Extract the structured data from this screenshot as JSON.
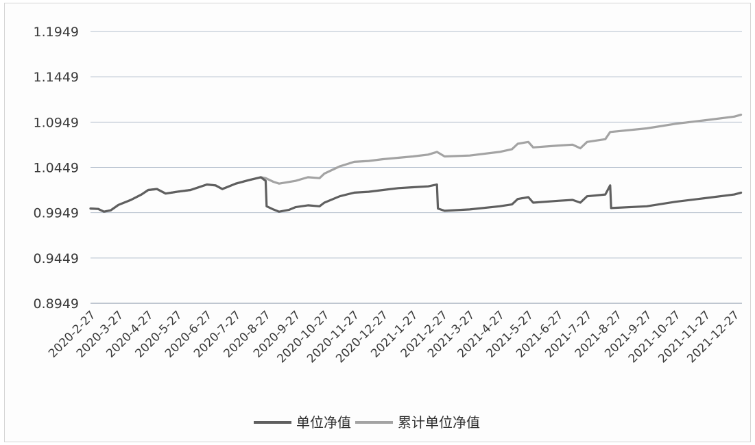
{
  "chart_data": {
    "type": "line",
    "title": "",
    "xlabel": "",
    "ylabel": "",
    "ylim": [
      0.8949,
      1.1949
    ],
    "yticks": [
      "1.1949",
      "1.1449",
      "1.0949",
      "1.0449",
      "0.9949",
      "0.9449",
      "0.8949"
    ],
    "x_labels": [
      "2020-2-27",
      "2020-3-27",
      "2020-4-27",
      "2020-5-27",
      "2020-6-27",
      "2020-7-27",
      "2020-8-27",
      "2020-9-27",
      "2020-10-27",
      "2020-11-27",
      "2020-12-27",
      "2021-1-27",
      "2021-2-27",
      "2021-3-27",
      "2021-4-27",
      "2021-5-27",
      "2021-6-27",
      "2021-7-27",
      "2021-8-27",
      "2021-9-27",
      "2021-10-27",
      "2021-11-27",
      "2021-12-27"
    ],
    "grid": true,
    "legend_position": "bottom",
    "series": [
      {
        "name": "单位净值",
        "color": "#5f5f5f",
        "points": [
          [
            "2020-2-27",
            0.9995
          ],
          [
            "2020-3-6",
            0.999
          ],
          [
            "2020-3-12",
            0.996
          ],
          [
            "2020-3-19",
            0.9975
          ],
          [
            "2020-3-27",
            1.0035
          ],
          [
            "2020-4-9",
            1.009
          ],
          [
            "2020-4-20",
            1.015
          ],
          [
            "2020-4-27",
            1.02
          ],
          [
            "2020-5-6",
            1.021
          ],
          [
            "2020-5-15",
            1.016
          ],
          [
            "2020-5-27",
            1.018
          ],
          [
            "2020-6-10",
            1.02
          ],
          [
            "2020-6-27",
            1.026
          ],
          [
            "2020-7-6",
            1.025
          ],
          [
            "2020-7-13",
            1.021
          ],
          [
            "2020-7-27",
            1.027
          ],
          [
            "2020-8-10",
            1.031
          ],
          [
            "2020-8-22",
            1.034
          ],
          [
            "2020-8-27",
            1.03
          ],
          [
            "2020-8-28",
            1.002
          ],
          [
            "2020-9-4",
            0.9985
          ],
          [
            "2020-9-10",
            0.996
          ],
          [
            "2020-9-20",
            0.998
          ],
          [
            "2020-9-27",
            1.001
          ],
          [
            "2020-10-10",
            1.003
          ],
          [
            "2020-10-22",
            1.002
          ],
          [
            "2020-10-27",
            1.006
          ],
          [
            "2020-11-12",
            1.013
          ],
          [
            "2020-11-27",
            1.017
          ],
          [
            "2020-12-12",
            1.018
          ],
          [
            "2020-12-27",
            1.02
          ],
          [
            "2021-1-12",
            1.022
          ],
          [
            "2021-1-27",
            1.023
          ],
          [
            "2021-2-12",
            1.024
          ],
          [
            "2021-2-21",
            1.026
          ],
          [
            "2021-2-22",
            0.9995
          ],
          [
            "2021-3-1",
            0.997
          ],
          [
            "2021-3-27",
            0.9985
          ],
          [
            "2021-4-27",
            1.002
          ],
          [
            "2021-5-10",
            1.004
          ],
          [
            "2021-5-16",
            1.01
          ],
          [
            "2021-5-27",
            1.012
          ],
          [
            "2021-6-1",
            1.006
          ],
          [
            "2021-6-27",
            1.008
          ],
          [
            "2021-7-12",
            1.009
          ],
          [
            "2021-7-20",
            1.006
          ],
          [
            "2021-7-27",
            1.013
          ],
          [
            "2021-8-15",
            1.015
          ],
          [
            "2021-8-20",
            1.025
          ],
          [
            "2021-8-21",
            1.0
          ],
          [
            "2021-9-27",
            1.002
          ],
          [
            "2021-10-27",
            1.007
          ],
          [
            "2021-11-27",
            1.011
          ],
          [
            "2021-12-27",
            1.015
          ],
          [
            "2022-1-3",
            1.017
          ]
        ]
      },
      {
        "name": "累计单位净值",
        "color": "#a3a3a3",
        "points": [
          [
            "2020-2-27",
            0.9995
          ],
          [
            "2020-3-6",
            0.999
          ],
          [
            "2020-3-12",
            0.996
          ],
          [
            "2020-3-19",
            0.9975
          ],
          [
            "2020-3-27",
            1.0035
          ],
          [
            "2020-4-9",
            1.009
          ],
          [
            "2020-4-20",
            1.015
          ],
          [
            "2020-4-27",
            1.02
          ],
          [
            "2020-5-6",
            1.021
          ],
          [
            "2020-5-15",
            1.016
          ],
          [
            "2020-5-27",
            1.018
          ],
          [
            "2020-6-10",
            1.02
          ],
          [
            "2020-6-27",
            1.026
          ],
          [
            "2020-7-6",
            1.025
          ],
          [
            "2020-7-13",
            1.021
          ],
          [
            "2020-7-27",
            1.027
          ],
          [
            "2020-8-10",
            1.031
          ],
          [
            "2020-8-22",
            1.034
          ],
          [
            "2020-8-27",
            1.033
          ],
          [
            "2020-9-4",
            1.029
          ],
          [
            "2020-9-10",
            1.027
          ],
          [
            "2020-9-27",
            1.03
          ],
          [
            "2020-10-10",
            1.034
          ],
          [
            "2020-10-22",
            1.033
          ],
          [
            "2020-10-27",
            1.038
          ],
          [
            "2020-11-12",
            1.046
          ],
          [
            "2020-11-27",
            1.051
          ],
          [
            "2020-12-12",
            1.052
          ],
          [
            "2020-12-27",
            1.054
          ],
          [
            "2021-1-27",
            1.057
          ],
          [
            "2021-2-12",
            1.059
          ],
          [
            "2021-2-21",
            1.062
          ],
          [
            "2021-3-1",
            1.057
          ],
          [
            "2021-3-27",
            1.058
          ],
          [
            "2021-4-27",
            1.062
          ],
          [
            "2021-5-10",
            1.065
          ],
          [
            "2021-5-16",
            1.071
          ],
          [
            "2021-5-27",
            1.073
          ],
          [
            "2021-6-1",
            1.067
          ],
          [
            "2021-6-27",
            1.069
          ],
          [
            "2021-7-12",
            1.07
          ],
          [
            "2021-7-20",
            1.066
          ],
          [
            "2021-7-27",
            1.073
          ],
          [
            "2021-8-15",
            1.076
          ],
          [
            "2021-8-20",
            1.084
          ],
          [
            "2021-9-27",
            1.088
          ],
          [
            "2021-10-27",
            1.093
          ],
          [
            "2021-11-27",
            1.097
          ],
          [
            "2021-12-27",
            1.101
          ],
          [
            "2022-1-3",
            1.103
          ]
        ]
      }
    ]
  }
}
